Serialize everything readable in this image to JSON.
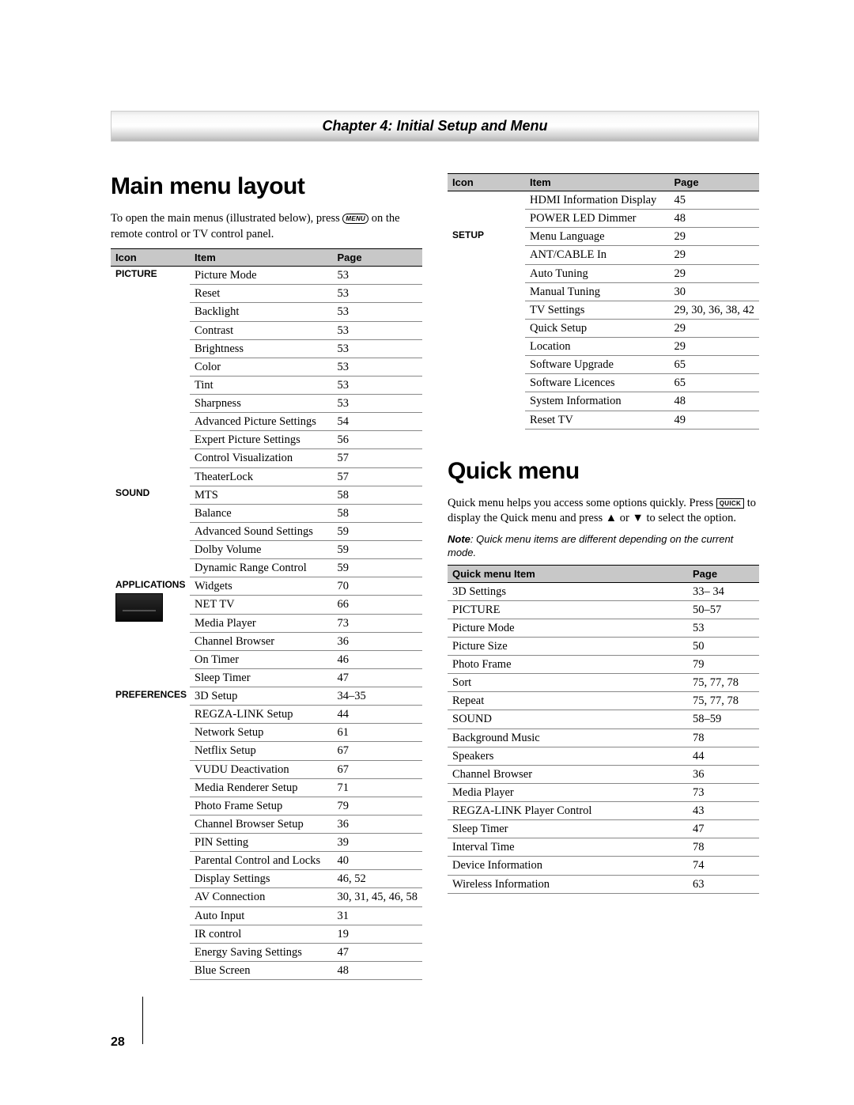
{
  "chapter_title": "Chapter 4: Initial Setup and Menu",
  "page_number": "28",
  "mainmenu": {
    "title": "Main menu layout",
    "intro_before_btn": "To open the main menus (illustrated below), press ",
    "menu_btn": "MENU",
    "intro_after_btn": " on the remote control or TV control panel.",
    "headers": {
      "icon": "Icon",
      "item": "Item",
      "page": "Page"
    },
    "groups": [
      {
        "icon": "PICTURE",
        "rows": [
          {
            "item": "Picture Mode",
            "page": "53"
          },
          {
            "item": "Reset",
            "page": "53"
          },
          {
            "item": "Backlight",
            "page": "53"
          },
          {
            "item": "Contrast",
            "page": "53"
          },
          {
            "item": "Brightness",
            "page": "53"
          },
          {
            "item": "Color",
            "page": "53"
          },
          {
            "item": "Tint",
            "page": "53"
          },
          {
            "item": "Sharpness",
            "page": "53"
          },
          {
            "item": "Advanced Picture Settings",
            "page": "54"
          },
          {
            "item": "Expert Picture Settings",
            "page": "56"
          },
          {
            "item": "Control Visualization",
            "page": "57"
          },
          {
            "item": "TheaterLock",
            "page": "57"
          }
        ]
      },
      {
        "icon": "SOUND",
        "rows": [
          {
            "item": "MTS",
            "page": "58"
          },
          {
            "item": "Balance",
            "page": "58"
          },
          {
            "item": "Advanced Sound Settings",
            "page": "59"
          },
          {
            "item": "Dolby Volume",
            "page": "59"
          },
          {
            "item": "Dynamic Range Control",
            "page": "59"
          }
        ]
      },
      {
        "icon": "APPLICATIONS",
        "has_image": true,
        "rows": [
          {
            "item": "Widgets",
            "page": "70"
          },
          {
            "item": "NET TV",
            "page": "66"
          },
          {
            "item": "Media Player",
            "page": "73"
          },
          {
            "item": "Channel Browser",
            "page": "36"
          },
          {
            "item": "On Timer",
            "page": "46"
          },
          {
            "item": "Sleep Timer",
            "page": "47"
          }
        ]
      },
      {
        "icon": "PREFERENCES",
        "rows": [
          {
            "item": "3D Setup",
            "page": "34–35"
          },
          {
            "item": "REGZA-LINK Setup",
            "page": "44"
          },
          {
            "item": "Network Setup",
            "page": "61"
          },
          {
            "item": "Netflix Setup",
            "page": "67"
          },
          {
            "item": "VUDU Deactivation",
            "page": "67"
          },
          {
            "item": "Media Renderer Setup",
            "page": "71"
          },
          {
            "item": "Photo Frame Setup",
            "page": "79"
          },
          {
            "item": "Channel Browser Setup",
            "page": "36"
          },
          {
            "item": "PIN Setting",
            "page": "39"
          },
          {
            "item": "Parental Control and Locks",
            "page": "40"
          },
          {
            "item": "Display Settings",
            "page": "46, 52"
          },
          {
            "item": "AV Connection",
            "page": "30, 31, 45, 46, 58"
          },
          {
            "item": "Auto Input",
            "page": "31"
          },
          {
            "item": "IR control",
            "page": "19"
          },
          {
            "item": "Energy Saving Settings",
            "page": "47"
          },
          {
            "item": "Blue Screen",
            "page": "48"
          }
        ]
      }
    ],
    "right_groups": [
      {
        "icon": "",
        "rows": [
          {
            "item": "HDMI Information Display",
            "page": "45"
          },
          {
            "item": "POWER LED Dimmer",
            "page": "48"
          }
        ]
      },
      {
        "icon": "SETUP",
        "rows": [
          {
            "item": "Menu Language",
            "page": "29"
          },
          {
            "item": "ANT/CABLE In",
            "page": "29"
          },
          {
            "item": "Auto Tuning",
            "page": "29"
          },
          {
            "item": "Manual Tuning",
            "page": "30"
          },
          {
            "item": "TV Settings",
            "page": "29, 30, 36, 38, 42"
          },
          {
            "item": "Quick Setup",
            "page": "29"
          },
          {
            "item": "Location",
            "page": "29"
          },
          {
            "item": "Software Upgrade",
            "page": "65"
          },
          {
            "item": "Software Licences",
            "page": "65"
          },
          {
            "item": "System Information",
            "page": "48"
          },
          {
            "item": "Reset TV",
            "page": "49"
          }
        ]
      }
    ]
  },
  "quickmenu": {
    "title": "Quick menu",
    "intro_line1": "Quick menu helps you access some options quickly. ",
    "intro_press": "Press ",
    "quick_btn": "QUICK",
    "intro_after_btn": " to display the Quick menu and press ",
    "arrow_up": "▲",
    "intro_or": " or ",
    "arrow_down": "▼",
    "intro_end": " to select the option.",
    "note_label": "Note",
    "note_text": ": Quick menu items are different depending on the current mode.",
    "headers": {
      "item": "Quick menu Item",
      "page": "Page"
    },
    "rows": [
      {
        "item": "3D Settings",
        "page": "33– 34"
      },
      {
        "item": "PICTURE",
        "page": "50–57"
      },
      {
        "item": "Picture Mode",
        "page": "53"
      },
      {
        "item": "Picture Size",
        "page": "50"
      },
      {
        "item": "Photo Frame",
        "page": "79"
      },
      {
        "item": "Sort",
        "page": "75, 77, 78"
      },
      {
        "item": "Repeat",
        "page": "75, 77, 78"
      },
      {
        "item": "SOUND",
        "page": "58–59"
      },
      {
        "item": "Background Music",
        "page": "78"
      },
      {
        "item": "Speakers",
        "page": "44"
      },
      {
        "item": "Channel Browser",
        "page": "36"
      },
      {
        "item": "Media Player",
        "page": "73"
      },
      {
        "item": "REGZA-LINK Player Control",
        "page": "43"
      },
      {
        "item": "Sleep Timer",
        "page": "47"
      },
      {
        "item": "Interval Time",
        "page": "78"
      },
      {
        "item": "Device Information",
        "page": "74"
      },
      {
        "item": "Wireless Information",
        "page": "63"
      }
    ]
  }
}
